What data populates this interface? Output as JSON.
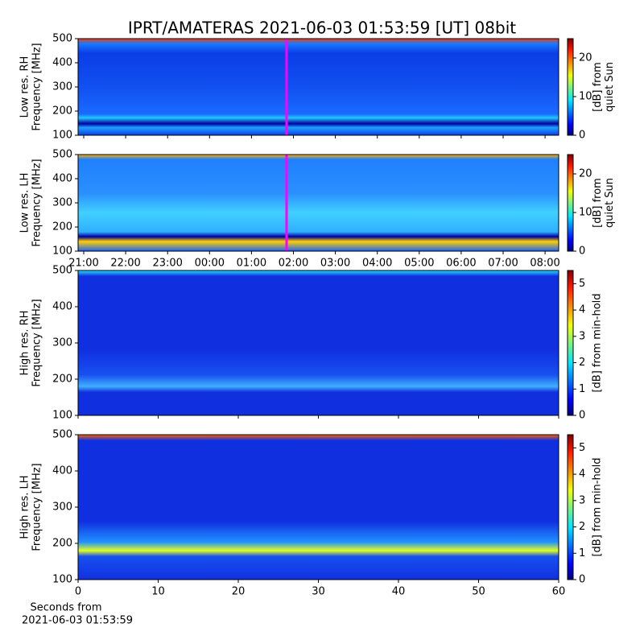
{
  "chart_data": [
    {
      "type": "heatmap",
      "title": "IPRT/AMATERAS 2021-06-03 01:53:59 [UT]   08bit",
      "ylabel": [
        "Low res. RH",
        "Frequency [MHz]"
      ],
      "ylim": [
        100,
        500
      ],
      "yticks": [
        100,
        200,
        300,
        400,
        500
      ],
      "colorbar_label": [
        "[dB] from",
        "quiet Sun"
      ],
      "clim": [
        0,
        25
      ],
      "cticks": [
        0,
        10,
        20
      ],
      "colormap": "jet"
    },
    {
      "type": "heatmap",
      "ylabel": [
        "Low res. LH",
        "Frequency [MHz]"
      ],
      "ylim": [
        100,
        500
      ],
      "yticks": [
        100,
        200,
        300,
        400,
        500
      ],
      "xticks": [
        "21:00",
        "22:00",
        "23:00",
        "00:00",
        "01:00",
        "02:00",
        "03:00",
        "04:00",
        "05:00",
        "06:00",
        "07:00",
        "08:00"
      ],
      "colorbar_label": [
        "[dB] from",
        "quiet Sun"
      ],
      "clim": [
        0,
        25
      ],
      "cticks": [
        0,
        10,
        20
      ],
      "colormap": "jet"
    },
    {
      "type": "heatmap",
      "ylabel": [
        "High res. RH",
        "Frequency [MHz]"
      ],
      "ylim": [
        100,
        500
      ],
      "yticks": [
        100,
        200,
        300,
        400,
        500
      ],
      "colorbar_label": [
        "[dB] from min-hold"
      ],
      "clim": [
        0,
        5.5
      ],
      "cticks": [
        0,
        1,
        2,
        3,
        4,
        5
      ],
      "colormap": "jet"
    },
    {
      "type": "heatmap",
      "ylabel": [
        "High res. LH",
        "Frequency [MHz]"
      ],
      "ylim": [
        100,
        500
      ],
      "yticks": [
        100,
        200,
        300,
        400,
        500
      ],
      "xlim": [
        0,
        60
      ],
      "xticks": [
        0,
        10,
        20,
        30,
        40,
        50,
        60
      ],
      "xlabel": [
        "Seconds from",
        "2021-06-03 01:53:59"
      ],
      "colorbar_label": [
        "[dB] from min-hold"
      ],
      "clim": [
        0,
        5.5
      ],
      "cticks": [
        0,
        1,
        2,
        3,
        4,
        5
      ],
      "colormap": "jet"
    }
  ]
}
